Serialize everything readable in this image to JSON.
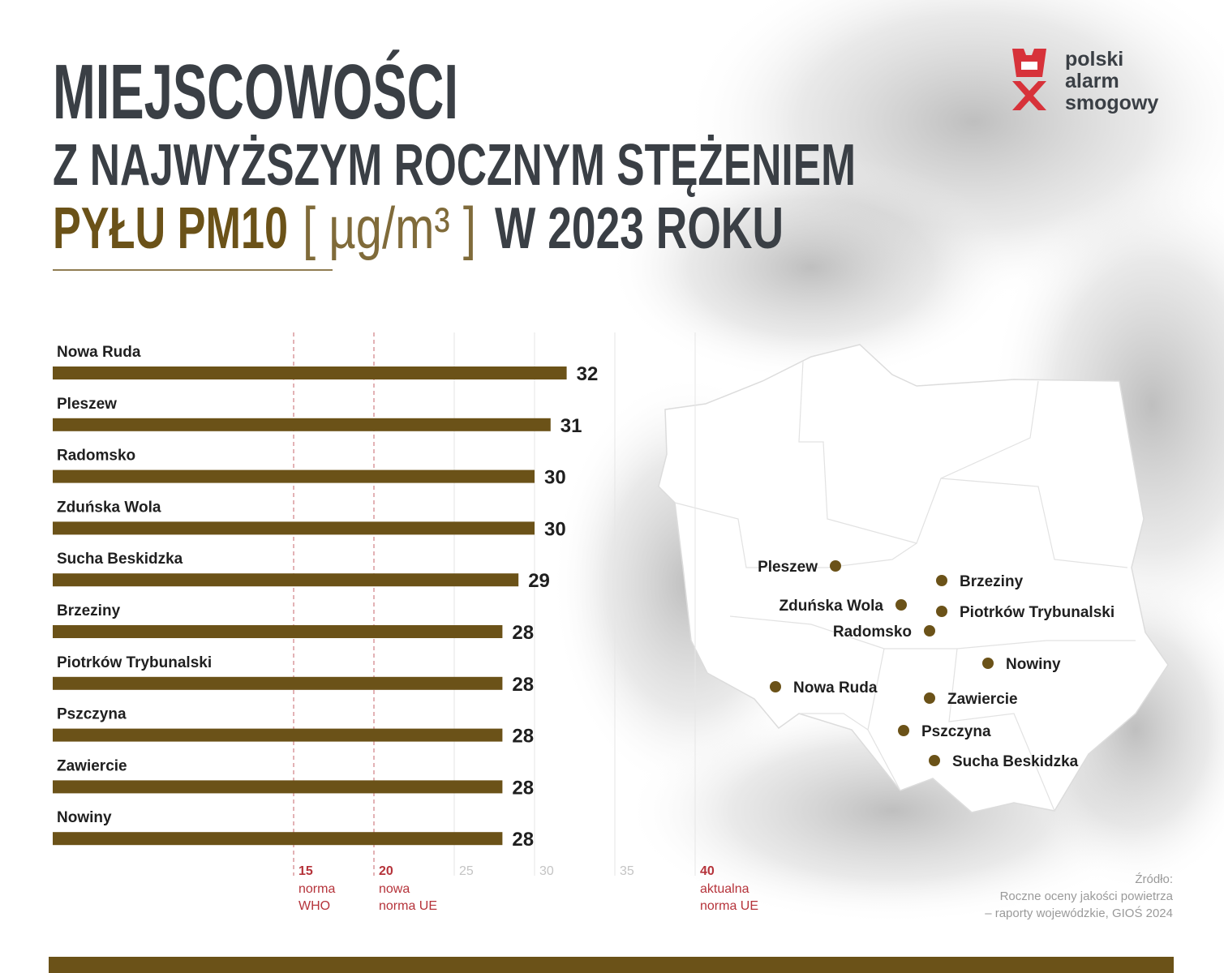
{
  "logo": {
    "lines": [
      "polski",
      "alarm",
      "smogowy"
    ]
  },
  "source": {
    "lines": [
      "Źródło:",
      "Roczne oceny jakości powietrza",
      "– raporty wojewódzkie, GIOŚ 2024"
    ]
  },
  "chart_data": {
    "type": "bar",
    "orientation": "horizontal",
    "title": [
      "MIEJSCOWOŚCI",
      "Z NAJWYŻSZYM ROCZNYM STĘŻENIEM"
    ],
    "title_highlight": "PYŁU PM10",
    "unit": "[ µg/m³ ]",
    "title_end": "W 2023 ROKU",
    "categories": [
      "Nowa Ruda",
      "Pleszew",
      "Radomsko",
      "Zduńska Wola",
      "Sucha Beskidzka",
      "Brzeziny",
      "Piotrków Trybunalski",
      "Pszczyna",
      "Zawiercie",
      "Nowiny"
    ],
    "values": [
      32,
      31,
      30,
      30,
      29,
      28,
      28,
      28,
      28,
      28
    ],
    "color": "#6b5218",
    "xlim": [
      0,
      40
    ],
    "xticks": [
      25,
      30,
      35
    ],
    "norms": [
      {
        "value": 15,
        "label": "norma WHO"
      },
      {
        "value": 20,
        "label": "nowa norma UE"
      },
      {
        "value": 40,
        "label": "aktualna norma UE"
      }
    ],
    "norm_color": "#b5333a",
    "grid": true
  }
}
